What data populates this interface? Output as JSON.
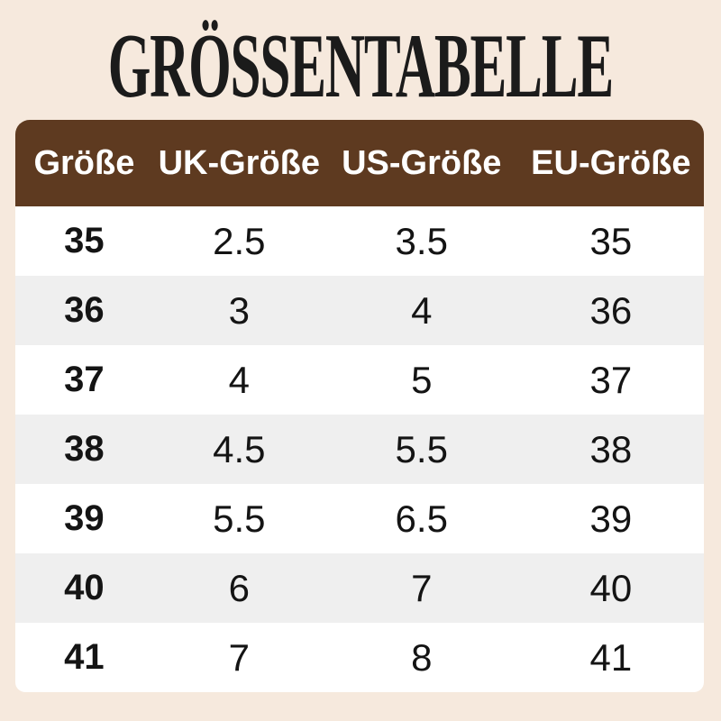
{
  "title": "GRÖSSENTABELLE",
  "colors": {
    "page_bg": "#f6e9dd",
    "header_bg": "#5e3a20",
    "header_text": "#ffffff",
    "row_bg": "#ffffff",
    "row_alt_bg": "#efefef",
    "body_text": "#141414",
    "title_color": "#1b1b1b"
  },
  "chart_data": {
    "type": "table",
    "title": "GRÖSSENTABELLE",
    "columns": [
      "Größe",
      "UK-Größe",
      "US-Größe",
      "EU-Größe"
    ],
    "rows": [
      [
        "35",
        "2.5",
        "3.5",
        "35"
      ],
      [
        "36",
        "3",
        "4",
        "36"
      ],
      [
        "37",
        "4",
        "5",
        "37"
      ],
      [
        "38",
        "4.5",
        "5.5",
        "38"
      ],
      [
        "39",
        "5.5",
        "6.5",
        "39"
      ],
      [
        "40",
        "6",
        "7",
        "40"
      ],
      [
        "41",
        "7",
        "8",
        "41"
      ]
    ],
    "layout": {
      "header_position": "top",
      "zebra_striping": true,
      "grid": false
    }
  }
}
